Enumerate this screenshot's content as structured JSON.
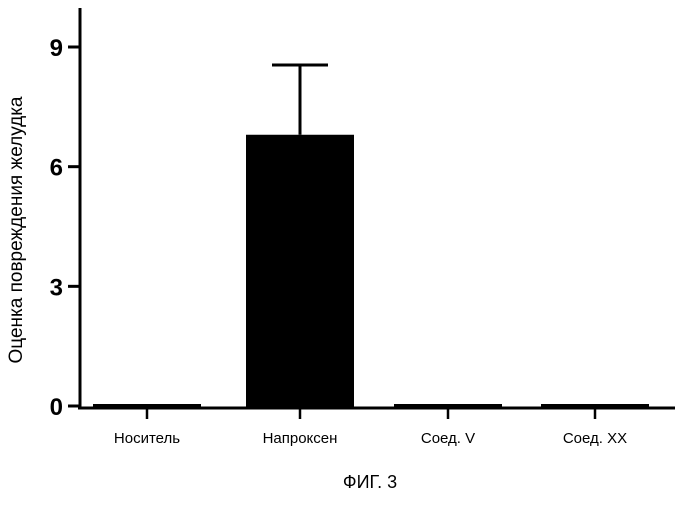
{
  "chart_data": {
    "type": "bar",
    "title": "",
    "xlabel": "",
    "ylabel": "Оценка повреждения желудка",
    "categories": [
      "Носитель",
      "Напроксен",
      "Соед. V",
      "Соед. XX"
    ],
    "values": [
      0.05,
      6.8,
      0.0,
      -0.03
    ],
    "error_upper": [
      0,
      1.75,
      0,
      0
    ],
    "ylim": [
      0,
      10
    ],
    "yticks": [
      0,
      3,
      6,
      9
    ],
    "ytick_labels": [
      "0",
      "3",
      "6",
      "9"
    ],
    "grid": false,
    "legend": "none",
    "bar_color": "#000000"
  },
  "caption": "ФИГ. 3"
}
